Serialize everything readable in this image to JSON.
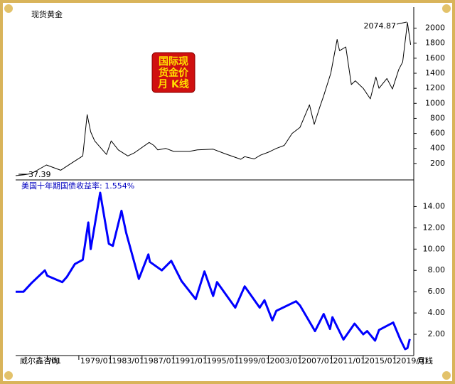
{
  "chart_data": [
    {
      "type": "line",
      "title": "现货黄金",
      "badge": [
        "国际现",
        "货金价",
        "月 K线"
      ],
      "annotations": [
        "2074.87",
        "37.39"
      ],
      "x": [
        1971.0,
        1972.0,
        1973.0,
        1974.9,
        1976.7,
        1978.0,
        1979.5,
        1980.05,
        1980.5,
        1981.0,
        1982.5,
        1983.1,
        1984.0,
        1985.2,
        1986.0,
        1987.9,
        1988.5,
        1989.0,
        1990.0,
        1991.0,
        1993.0,
        1994.0,
        1996.0,
        1997.5,
        1999.5,
        2000.0,
        2001.2,
        2002.0,
        2003.0,
        2004.0,
        2005.0,
        2006.0,
        2007.0,
        2008.2,
        2008.8,
        2009.5,
        2010.0,
        2010.9,
        2011.7,
        2012.0,
        2012.8,
        2013.5,
        2014.0,
        2015.0,
        2015.9,
        2016.6,
        2017.0,
        2018.0,
        2018.7,
        2019.5,
        2020.0,
        2020.6,
        2021.0
      ],
      "series": [
        {
          "name": "现货黄金",
          "color": "#000000",
          "values": [
            37.39,
            48,
            65,
            180,
            110,
            200,
            300,
            850,
            620,
            500,
            320,
            500,
            380,
            300,
            340,
            480,
            440,
            380,
            400,
            360,
            360,
            380,
            390,
            330,
            255,
            290,
            260,
            310,
            350,
            400,
            440,
            600,
            680,
            980,
            720,
            950,
            1100,
            1400,
            1850,
            1700,
            1750,
            1250,
            1300,
            1200,
            1060,
            1350,
            1200,
            1330,
            1190,
            1450,
            1550,
            2074.87,
            1780
          ]
        }
      ],
      "xlim": [
        1971,
        2021.4
      ],
      "ylim": [
        0,
        2280
      ],
      "yticks": [
        200,
        400,
        600,
        800,
        1000,
        1200,
        1400,
        1600,
        1800,
        2000
      ]
    },
    {
      "type": "line",
      "title": "美国十年期国债收益率: 1.554%",
      "source": "威尔鑫咨询",
      "x_label": "月线",
      "x": [
        1971.0,
        1972.0,
        1973.0,
        1974.7,
        1975.0,
        1976.9,
        1977.5,
        1978.5,
        1979.5,
        1980.2,
        1980.5,
        1981.7,
        1982.8,
        1983.3,
        1984.4,
        1985.0,
        1986.6,
        1987.8,
        1988.0,
        1989.5,
        1990.7,
        1992.0,
        1993.8,
        1994.9,
        1996.0,
        1996.5,
        1998.8,
        2000.0,
        2001.9,
        2002.5,
        2003.5,
        2004.0,
        2006.5,
        2007.0,
        2008.9,
        2010.0,
        2010.8,
        2011.1,
        2012.5,
        2013.9,
        2015.0,
        2015.5,
        2016.5,
        2017.0,
        2018.8,
        2019.7,
        2020.3,
        2020.6,
        2020.9
      ],
      "series": [
        {
          "name": "美国十年期国债收益率",
          "color": "#0000ff",
          "values": [
            6.0,
            6.0,
            6.8,
            8.0,
            7.5,
            6.9,
            7.4,
            8.6,
            9.0,
            12.5,
            10.0,
            15.3,
            10.5,
            10.3,
            13.6,
            11.5,
            7.2,
            9.5,
            8.8,
            8.0,
            8.9,
            7.0,
            5.3,
            7.9,
            5.6,
            6.9,
            4.5,
            6.5,
            4.5,
            5.2,
            3.3,
            4.2,
            5.1,
            4.7,
            2.3,
            3.9,
            2.5,
            3.6,
            1.5,
            3.0,
            2.0,
            2.3,
            1.4,
            2.4,
            3.1,
            1.5,
            0.6,
            0.7,
            1.554
          ]
        }
      ],
      "xlim": [
        1971,
        2021.4
      ],
      "ylim": [
        0,
        16.3
      ],
      "yticks": [
        {
          "value": 2,
          "label": "2.00"
        },
        {
          "value": 4,
          "label": "4.00"
        },
        {
          "value": 6,
          "label": "6.00"
        },
        {
          "value": 8,
          "label": "8.00"
        },
        {
          "value": 10,
          "label": "10.00"
        },
        {
          "value": 12,
          "label": "12.00"
        },
        {
          "value": 14,
          "label": "14.00"
        }
      ],
      "xticks": [
        {
          "value": 1975,
          "label": "/01"
        },
        {
          "value": 1979,
          "label": "1979/01"
        },
        {
          "value": 1983,
          "label": "1983/01"
        },
        {
          "value": 1987,
          "label": "1987/01"
        },
        {
          "value": 1991,
          "label": "1991/01"
        },
        {
          "value": 1995,
          "label": "1995/01"
        },
        {
          "value": 1999,
          "label": "1999/01"
        },
        {
          "value": 2003,
          "label": "2003/01"
        },
        {
          "value": 2007,
          "label": "2007/01"
        },
        {
          "value": 2011,
          "label": "2011/01"
        },
        {
          "value": 2015,
          "label": "2015/01"
        },
        {
          "value": 2019,
          "label": "2019/01"
        }
      ]
    }
  ]
}
